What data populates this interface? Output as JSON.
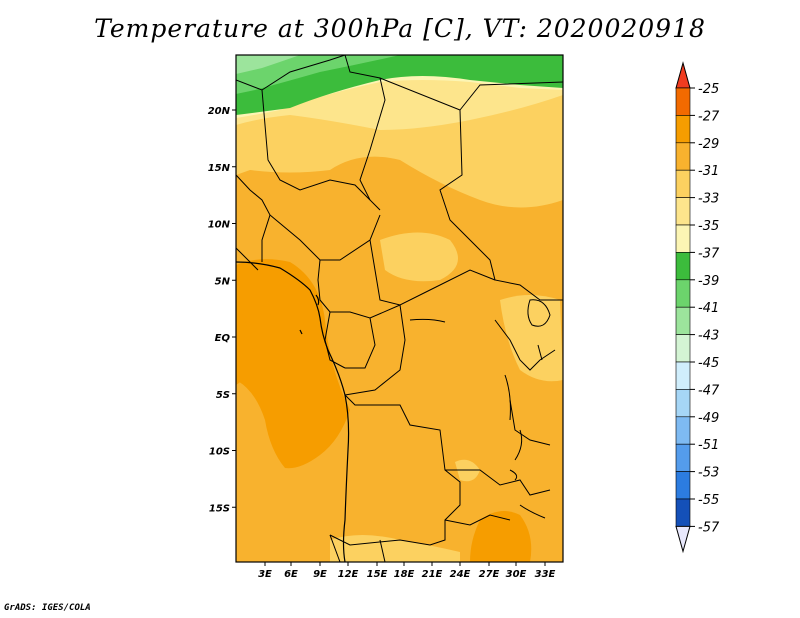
{
  "title": "Temperature at 300hPa [C], VT: 2020020918",
  "credit": "GrADS: IGES/COLA",
  "map": {
    "lon_range": [
      0,
      35
    ],
    "lat_range": [
      -20,
      25
    ],
    "lat_ticks": [
      {
        "lat": 20,
        "label": "20N"
      },
      {
        "lat": 15,
        "label": "15N"
      },
      {
        "lat": 10,
        "label": "10N"
      },
      {
        "lat": 5,
        "label": "5N"
      },
      {
        "lat": 0,
        "label": "EQ"
      },
      {
        "lat": -5,
        "label": "5S"
      },
      {
        "lat": -10,
        "label": "10S"
      },
      {
        "lat": -15,
        "label": "15S"
      }
    ],
    "lon_ticks": [
      {
        "lon": 3,
        "label": "3E"
      },
      {
        "lon": 6,
        "label": "6E"
      },
      {
        "lon": 9,
        "label": "9E"
      },
      {
        "lon": 12,
        "label": "12E"
      },
      {
        "lon": 15,
        "label": "15E"
      },
      {
        "lon": 18,
        "label": "18E"
      },
      {
        "lon": 21,
        "label": "21E"
      },
      {
        "lon": 24,
        "label": "24E"
      },
      {
        "lon": 27,
        "label": "27E"
      },
      {
        "lon": 30,
        "label": "30E"
      },
      {
        "lon": 33,
        "label": "33E"
      }
    ]
  },
  "colorbar": {
    "labels": [
      "-25",
      "-27",
      "-29",
      "-31",
      "-33",
      "-35",
      "-37",
      "-39",
      "-41",
      "-43",
      "-45",
      "-47",
      "-49",
      "-51",
      "-53",
      "-55",
      "-57"
    ],
    "colors": {
      "top_tip": "#f03c20",
      "bins": [
        "#f26a00",
        "#f69d00",
        "#f8b22e",
        "#fcd160",
        "#fde58c",
        "#fcf5b4",
        "#3cbc3c",
        "#6cd46c",
        "#9ce49c",
        "#d4f4d4",
        "#d0eefc",
        "#a6d6f6",
        "#7ebaf2",
        "#549cec",
        "#2c7ce0",
        "#1450b8",
        "#0c2c96"
      ],
      "bottom_tip": "#080870",
      "bottom_tip_fill": "#e8e8fc"
    }
  },
  "field_colors": {
    "m25_m27": "#f69d00",
    "m27_m29": "#f8b22e",
    "m29_m31": "#fcd160",
    "m31_m33": "#fde58c",
    "m35_m37": "#3cbc3c",
    "m37_m39": "#6cd46c",
    "m39_m41": "#9ce49c"
  }
}
